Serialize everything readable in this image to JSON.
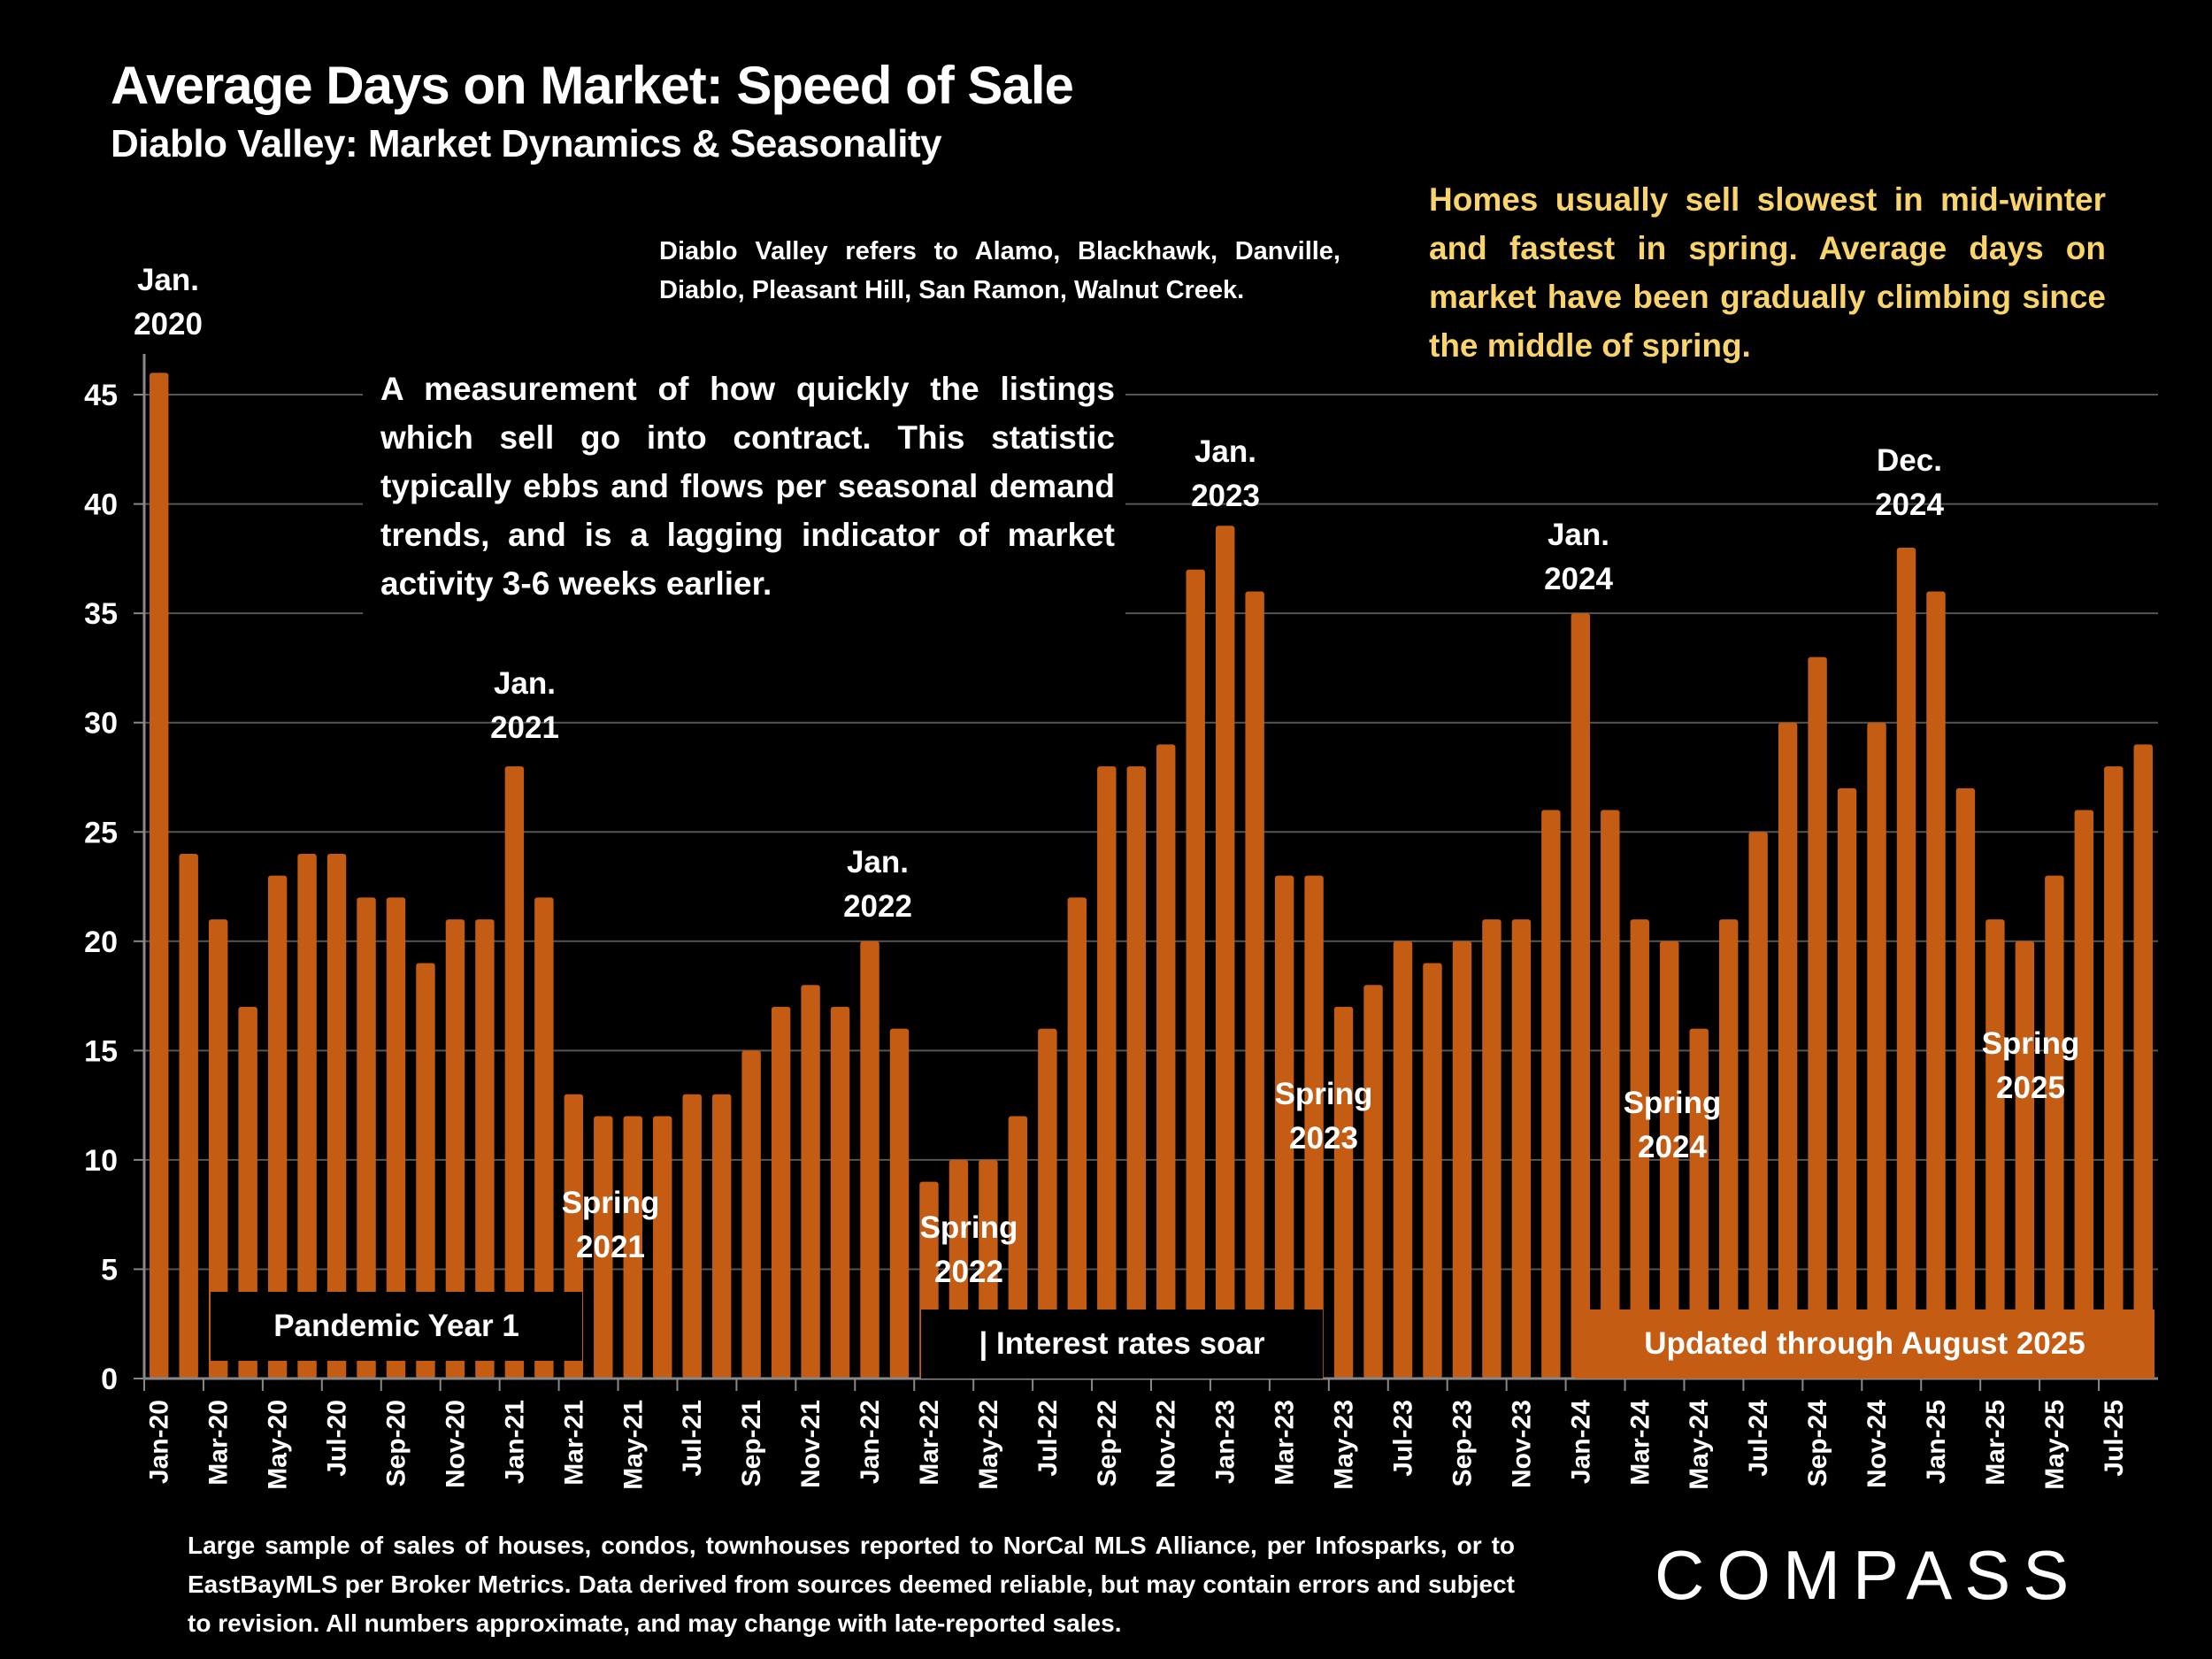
{
  "header": {
    "title": "Average Days on Market:  Speed of Sale",
    "subtitle": "Diablo Valley: Market Dynamics & Seasonality"
  },
  "notes": {
    "region": "Diablo Valley refers to Alamo, Blackhawk, Danville, Diablo, Pleasant Hill, San Ramon, Walnut Creek.",
    "insight": "Homes usually sell slowest in mid-winter and fastest in spring. Average days on market have been gradually climbing since the middle of spring.",
    "description": "A measurement of how quickly the listings which sell go into contract. This statistic typically ebbs and flows per seasonal demand trends, and is a lagging indicator of market activity 3-6 weeks earlier."
  },
  "colors": {
    "bar": "#c45c14",
    "insight_text": "#f9d36b",
    "background": "#000000",
    "gridline": "#555555"
  },
  "annotations": {
    "jan2020": {
      "line1": "Jan.",
      "line2": "2020"
    },
    "jan2021": {
      "line1": "Jan.",
      "line2": "2021"
    },
    "jan2022": {
      "line1": "Jan.",
      "line2": "2022"
    },
    "jan2023": {
      "line1": "Jan.",
      "line2": "2023"
    },
    "jan2024": {
      "line1": "Jan.",
      "line2": "2024"
    },
    "dec2024": {
      "line1": "Dec.",
      "line2": "2024"
    },
    "spring2021": {
      "line1": "Spring",
      "line2": "2021"
    },
    "spring2022": {
      "line1": "Spring",
      "line2": "2022"
    },
    "spring2023": {
      "line1": "Spring",
      "line2": "2023"
    },
    "spring2024": {
      "line1": "Spring",
      "line2": "2024"
    },
    "spring2025": {
      "line1": "Spring",
      "line2": "2025"
    }
  },
  "boxes": {
    "pandemic": "Pandemic Year 1",
    "rates": "| Interest rates soar",
    "updated": "Updated through August 2025"
  },
  "footer": "Large sample of sales of houses, condos, townhouses reported to NorCal MLS Alliance, per Infosparks, or to EastBayMLS per Broker Metrics. Data derived from sources deemed reliable, but may contain errors and subject to revision. All numbers approximate, and may change with late-reported sales.",
  "logo": "COMPASS",
  "chart_data": {
    "type": "bar",
    "title": "Average Days on Market:  Speed of Sale",
    "subtitle": "Diablo Valley: Market Dynamics & Seasonality",
    "xlabel": "",
    "ylabel": "",
    "ylim": [
      0,
      47
    ],
    "yticks": [
      0,
      5,
      10,
      15,
      20,
      25,
      30,
      35,
      40,
      45
    ],
    "grid": true,
    "legend": "none",
    "categories": [
      "Jan-20",
      "Feb-20",
      "Mar-20",
      "Apr-20",
      "May-20",
      "Jun-20",
      "Jul-20",
      "Aug-20",
      "Sep-20",
      "Oct-20",
      "Nov-20",
      "Dec-20",
      "Jan-21",
      "Feb-21",
      "Mar-21",
      "Apr-21",
      "May-21",
      "Jun-21",
      "Jul-21",
      "Aug-21",
      "Sep-21",
      "Oct-21",
      "Nov-21",
      "Dec-21",
      "Jan-22",
      "Feb-22",
      "Mar-22",
      "Apr-22",
      "May-22",
      "Jun-22",
      "Jul-22",
      "Aug-22",
      "Sep-22",
      "Oct-22",
      "Nov-22",
      "Dec-22",
      "Jan-23",
      "Feb-23",
      "Mar-23",
      "Apr-23",
      "May-23",
      "Jun-23",
      "Jul-23",
      "Aug-23",
      "Sep-23",
      "Oct-23",
      "Nov-23",
      "Dec-23",
      "Jan-24",
      "Feb-24",
      "Mar-24",
      "Apr-24",
      "May-24",
      "Jun-24",
      "Jul-24",
      "Aug-24",
      "Sep-24",
      "Oct-24",
      "Nov-24",
      "Dec-24",
      "Jan-25",
      "Feb-25",
      "Mar-25",
      "Apr-25",
      "May-25",
      "Jun-25",
      "Jul-25",
      "Aug-25"
    ],
    "values": [
      46,
      24,
      21,
      17,
      23,
      24,
      24,
      22,
      22,
      19,
      21,
      21,
      28,
      22,
      13,
      12,
      12,
      12,
      13,
      13,
      15,
      17,
      18,
      17,
      20,
      16,
      9,
      10,
      10,
      12,
      16,
      22,
      28,
      28,
      29,
      37,
      39,
      36,
      23,
      23,
      17,
      18,
      20,
      19,
      20,
      21,
      21,
      26,
      35,
      26,
      21,
      20,
      16,
      21,
      25,
      30,
      33,
      27,
      30,
      38,
      36,
      27,
      21,
      20,
      23,
      26,
      28,
      29
    ],
    "xtick_labels_shown": [
      "Jan-20",
      "Mar-20",
      "May-20",
      "Jul-20",
      "Sep-20",
      "Nov-20",
      "Jan-21",
      "Mar-21",
      "May-21",
      "Jul-21",
      "Sep-21",
      "Nov-21",
      "Jan-22",
      "Mar-22",
      "May-22",
      "Jul-22",
      "Sep-22",
      "Nov-22",
      "Jan-23",
      "Mar-23",
      "May-23",
      "Jul-23",
      "Sep-23",
      "Nov-23",
      "Jan-24",
      "Mar-24",
      "May-24",
      "Jul-24",
      "Sep-24",
      "Nov-24",
      "Jan-25",
      "Mar-25",
      "May-25",
      "Jul-25"
    ]
  }
}
